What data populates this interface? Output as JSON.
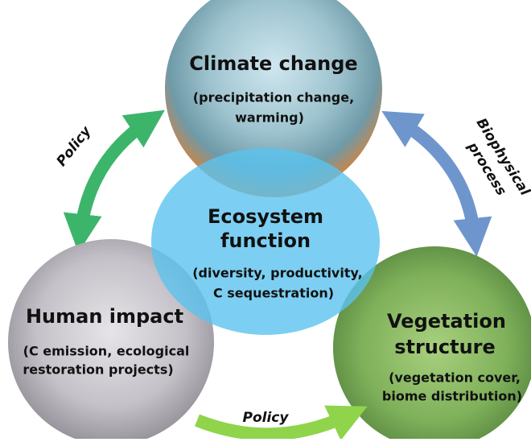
{
  "nodes": [
    {
      "title": [
        "Climate change"
      ],
      "detail": [
        "(precipitation change,",
        "warming)"
      ]
    },
    {
      "title": [
        "Ecosystem",
        "function"
      ],
      "detail": [
        "(diversity, productivity,",
        "C sequestration)"
      ]
    },
    {
      "title": [
        "Human impact"
      ],
      "detail": [
        "(C emission, ecological",
        "restoration projects)"
      ]
    },
    {
      "title": [
        "Vegetation",
        "structure"
      ],
      "detail": [
        "(vegetation cover,",
        "biome distribution)"
      ]
    }
  ],
  "edges": [
    {
      "label": [
        "Policy"
      ]
    },
    {
      "label": [
        "Biophysical",
        "process"
      ]
    },
    {
      "label": [
        "Policy"
      ]
    }
  ]
}
